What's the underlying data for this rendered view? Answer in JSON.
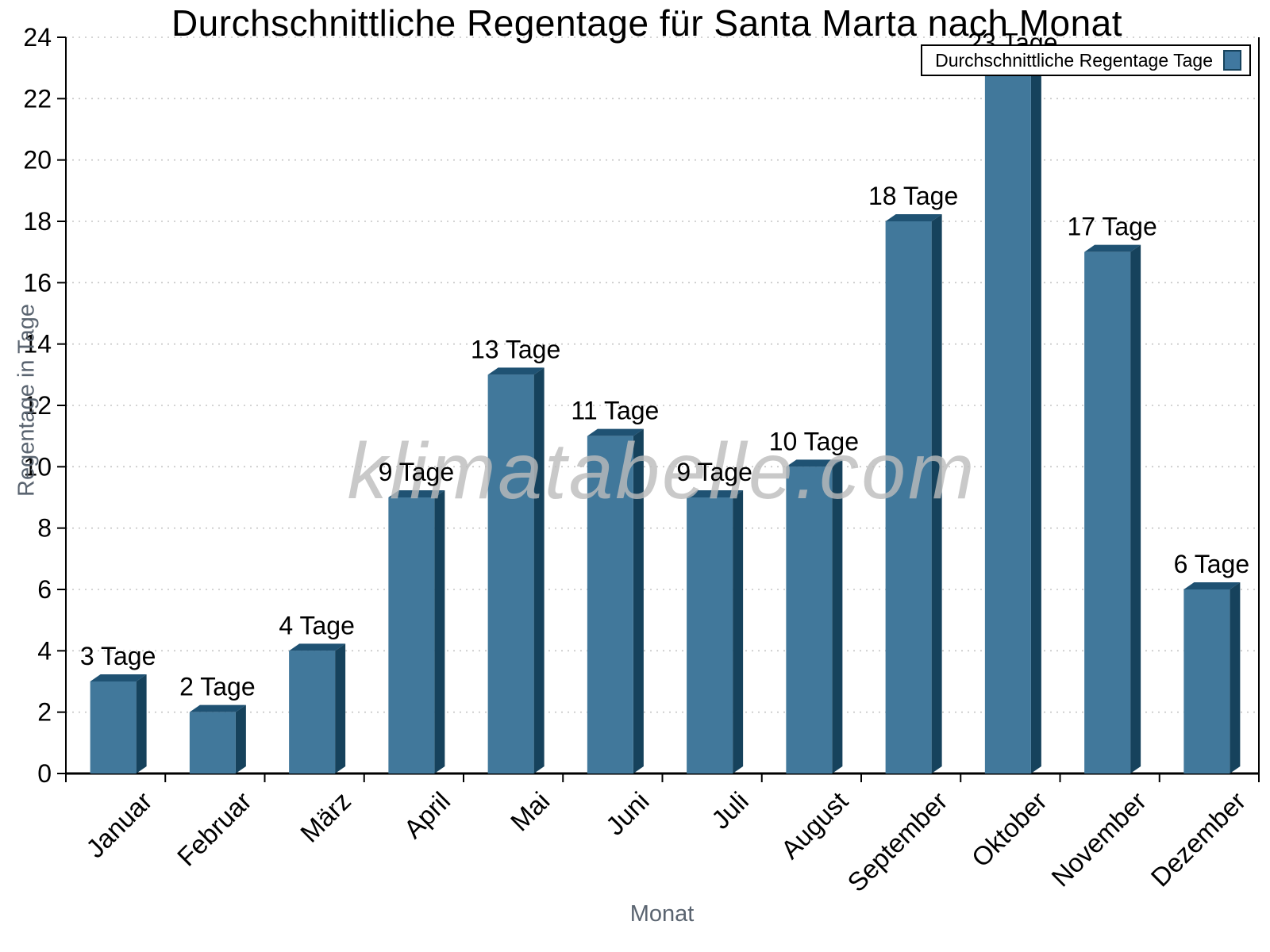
{
  "title": "Durchschnittliche Regentage für Santa Marta nach Monat",
  "legend": {
    "label": "Durchschnittliche Regentage Tage"
  },
  "watermark": "klimatabelle.com",
  "chart_data": {
    "type": "bar",
    "title": "Durchschnittliche Regentage für Santa Marta nach Monat",
    "xlabel": "Monat",
    "ylabel": "Regentage in Tage",
    "categories": [
      "Januar",
      "Februar",
      "März",
      "April",
      "Mai",
      "Juni",
      "Juli",
      "August",
      "September",
      "Oktober",
      "November",
      "Dezember"
    ],
    "values": [
      3,
      2,
      4,
      9,
      13,
      11,
      9,
      10,
      18,
      23,
      17,
      6
    ],
    "bar_labels": [
      "3 Tage",
      "2 Tage",
      "4 Tage",
      "9 Tage",
      "13 Tage",
      "11 Tage",
      "9 Tage",
      "10 Tage",
      "18 Tage",
      "23 Tage",
      "17 Tage",
      "6 Tage"
    ],
    "series": [
      {
        "name": "Durchschnittliche Regentage Tage",
        "values": [
          3,
          2,
          4,
          9,
          13,
          11,
          9,
          10,
          18,
          23,
          17,
          6
        ]
      }
    ],
    "ylim": [
      0,
      24
    ],
    "ytick_step": 2,
    "yticks": [
      0,
      2,
      4,
      6,
      8,
      10,
      12,
      14,
      16,
      18,
      20,
      22,
      24
    ],
    "grid": "horizontal-dotted",
    "legend_position": "top-right",
    "colors": {
      "bar_face": "#41789B",
      "bar_top": "#1F5273",
      "bar_side": "#16425C",
      "grid": "#c6c6c6",
      "axis": "#000000",
      "tick_label": "#000000",
      "axis_title": "#5a6470",
      "watermark": "#bcbcbc",
      "legend_swatch": "#4078A0"
    }
  }
}
